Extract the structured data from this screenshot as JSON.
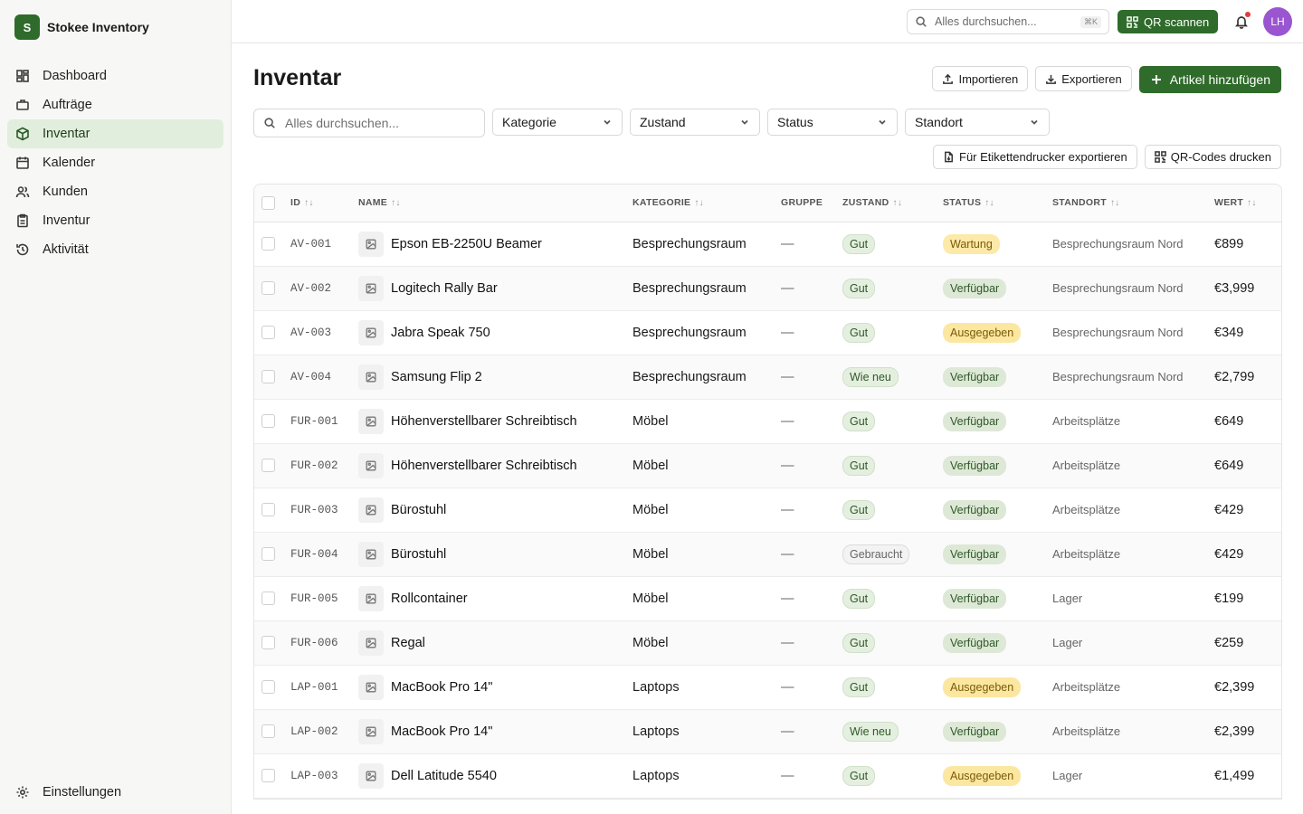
{
  "app": {
    "logo_letter": "S",
    "name": "Stokee Inventory"
  },
  "nav": {
    "items": [
      {
        "label": "Dashboard",
        "icon": "dashboard-icon"
      },
      {
        "label": "Aufträge",
        "icon": "briefcase-icon"
      },
      {
        "label": "Inventar",
        "icon": "package-icon"
      },
      {
        "label": "Kalender",
        "icon": "calendar-icon"
      },
      {
        "label": "Kunden",
        "icon": "users-icon"
      },
      {
        "label": "Inventur",
        "icon": "clipboard-icon"
      },
      {
        "label": "Aktivität",
        "icon": "history-icon"
      }
    ],
    "settings_label": "Einstellungen"
  },
  "topbar": {
    "search_placeholder": "Alles durchsuchen...",
    "shortcut": "⌘K",
    "qr_label": "QR scannen",
    "avatar_initials": "LH"
  },
  "page": {
    "title": "Inventar",
    "import_label": "Importieren",
    "export_label": "Exportieren",
    "add_label": "Artikel hinzufügen",
    "search_placeholder": "Alles durchsuchen...",
    "filters": {
      "category": "Kategorie",
      "condition": "Zustand",
      "status": "Status",
      "location": "Standort"
    },
    "label_export": "Für Etikettendrucker exportieren",
    "qr_print": "QR-Codes drucken"
  },
  "table": {
    "headers": {
      "id": "ID",
      "name": "NAME",
      "category": "KATEGORIE",
      "group": "GRUPPE",
      "condition": "ZUSTAND",
      "status": "STATUS",
      "location": "STANDORT",
      "value": "WERT"
    },
    "sort_glyph": "↑↓",
    "rows": [
      {
        "id": "AV-001",
        "name": "Epson EB-2250U Beamer",
        "category": "Besprechungsraum",
        "group": "—",
        "condition": "Gut",
        "status": "Wartung",
        "location": "Besprechungsraum Nord",
        "value": "€899"
      },
      {
        "id": "AV-002",
        "name": "Logitech Rally Bar",
        "category": "Besprechungsraum",
        "group": "—",
        "condition": "Gut",
        "status": "Verfügbar",
        "location": "Besprechungsraum Nord",
        "value": "€3,999"
      },
      {
        "id": "AV-003",
        "name": "Jabra Speak 750",
        "category": "Besprechungsraum",
        "group": "—",
        "condition": "Gut",
        "status": "Ausgegeben",
        "location": "Besprechungsraum Nord",
        "value": "€349"
      },
      {
        "id": "AV-004",
        "name": "Samsung Flip 2",
        "category": "Besprechungsraum",
        "group": "—",
        "condition": "Wie neu",
        "status": "Verfügbar",
        "location": "Besprechungsraum Nord",
        "value": "€2,799"
      },
      {
        "id": "FUR-001",
        "name": "Höhenverstellbarer Schreibtisch",
        "category": "Möbel",
        "group": "—",
        "condition": "Gut",
        "status": "Verfügbar",
        "location": "Arbeitsplätze",
        "value": "€649"
      },
      {
        "id": "FUR-002",
        "name": "Höhenverstellbarer Schreibtisch",
        "category": "Möbel",
        "group": "—",
        "condition": "Gut",
        "status": "Verfügbar",
        "location": "Arbeitsplätze",
        "value": "€649"
      },
      {
        "id": "FUR-003",
        "name": "Bürostuhl",
        "category": "Möbel",
        "group": "—",
        "condition": "Gut",
        "status": "Verfügbar",
        "location": "Arbeitsplätze",
        "value": "€429"
      },
      {
        "id": "FUR-004",
        "name": "Bürostuhl",
        "category": "Möbel",
        "group": "—",
        "condition": "Gebraucht",
        "status": "Verfügbar",
        "location": "Arbeitsplätze",
        "value": "€429"
      },
      {
        "id": "FUR-005",
        "name": "Rollcontainer",
        "category": "Möbel",
        "group": "—",
        "condition": "Gut",
        "status": "Verfügbar",
        "location": "Lager",
        "value": "€199"
      },
      {
        "id": "FUR-006",
        "name": "Regal",
        "category": "Möbel",
        "group": "—",
        "condition": "Gut",
        "status": "Verfügbar",
        "location": "Lager",
        "value": "€259"
      },
      {
        "id": "LAP-001",
        "name": "MacBook Pro 14\"",
        "category": "Laptops",
        "group": "—",
        "condition": "Gut",
        "status": "Ausgegeben",
        "location": "Arbeitsplätze",
        "value": "€2,399"
      },
      {
        "id": "LAP-002",
        "name": "MacBook Pro 14\"",
        "category": "Laptops",
        "group": "—",
        "condition": "Wie neu",
        "status": "Verfügbar",
        "location": "Arbeitsplätze",
        "value": "€2,399"
      },
      {
        "id": "LAP-003",
        "name": "Dell Latitude 5540",
        "category": "Laptops",
        "group": "—",
        "condition": "Gut",
        "status": "Ausgegeben",
        "location": "Lager",
        "value": "€1,499"
      }
    ]
  },
  "colors": {
    "brand": "#2f6b2a",
    "active_nav_bg": "#e2eedd",
    "avatar": "#9a55d0",
    "warning_badge": "#fde9a8"
  }
}
